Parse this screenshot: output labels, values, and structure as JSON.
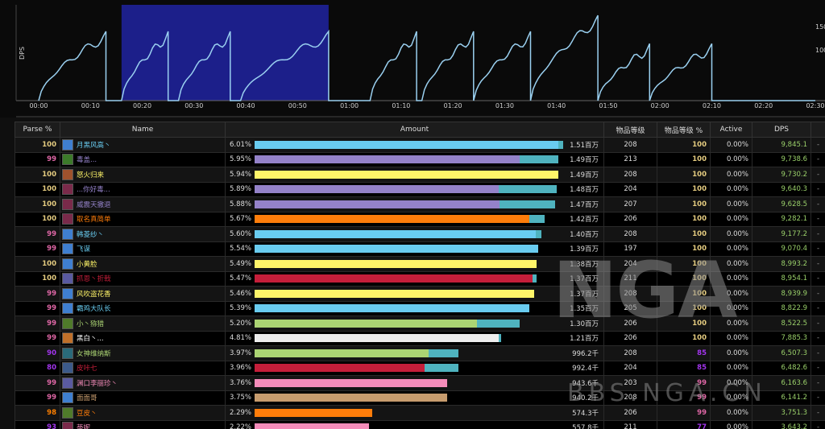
{
  "graph": {
    "y_label": "DPS",
    "y_ticks": [
      "150",
      "100"
    ],
    "x_ticks": [
      "00:00",
      "00:10",
      "00:20",
      "00:30",
      "00:40",
      "00:50",
      "01:00",
      "01:10",
      "01:20",
      "01:30",
      "01:40",
      "01:50",
      "02:00",
      "02:10",
      "02:20",
      "02:30"
    ],
    "duration_seconds": 150,
    "selection_seconds": [
      16,
      56
    ],
    "line_color": "#9ad0f0",
    "selection_color": "#1c1f8a"
  },
  "table": {
    "headers": {
      "parse": "Parse %",
      "name": "Name",
      "amount": "Amount",
      "ilvl": "物品等级",
      "ilvl_pct": "物品等级 %",
      "active": "Active",
      "dps": "DPS"
    },
    "rows": [
      {
        "parse": "100",
        "parse_color": "#e5cc80",
        "name": "月黑风高丶",
        "name_color": "#69ccf0",
        "icon": "mage-icon",
        "icon_color": "#3f7fd0",
        "amount_pct": "6.01%",
        "bar_fraction": 0.985,
        "bar_color": "#69ccf0",
        "bar_extra": 0.015,
        "total": "1.51百万",
        "ilvl": "208",
        "ilvl_pct": "100",
        "ilvl_pct_color": "#e5cc80",
        "active": "0.00%",
        "dps": "9,845.1"
      },
      {
        "parse": "99",
        "parse_color": "#e268a8",
        "name": "毒盖...",
        "name_color": "#9482c9",
        "icon": "warlock-icon",
        "icon_color": "#3c7a2a",
        "amount_pct": "5.95%",
        "bar_fraction": 0.86,
        "bar_color": "#9482c9",
        "bar_extra": 0.125,
        "total": "1.49百万",
        "ilvl": "213",
        "ilvl_pct": "100",
        "ilvl_pct_color": "#e5cc80",
        "active": "0.00%",
        "dps": "9,738.6"
      },
      {
        "parse": "100",
        "parse_color": "#e5cc80",
        "name": "怒火归来",
        "name_color": "#fff569",
        "icon": "rogue-icon",
        "icon_color": "#a0522d",
        "amount_pct": "5.94%",
        "bar_fraction": 0.985,
        "bar_color": "#fff569",
        "bar_extra": 0.0,
        "total": "1.49百万",
        "ilvl": "208",
        "ilvl_pct": "100",
        "ilvl_pct_color": "#e5cc80",
        "active": "0.00%",
        "dps": "9,730.2"
      },
      {
        "parse": "100",
        "parse_color": "#e5cc80",
        "name": "...你好毒...",
        "name_color": "#9482c9",
        "icon": "warlock-icon",
        "icon_color": "#7a2a4a",
        "amount_pct": "5.89%",
        "bar_fraction": 0.79,
        "bar_color": "#9482c9",
        "bar_extra": 0.19,
        "total": "1.48百万",
        "ilvl": "204",
        "ilvl_pct": "100",
        "ilvl_pct_color": "#e5cc80",
        "active": "0.00%",
        "dps": "9,640.3"
      },
      {
        "parse": "100",
        "parse_color": "#e5cc80",
        "name": "威震天撤退",
        "name_color": "#9482c9",
        "icon": "warlock-icon",
        "icon_color": "#7a2a4a",
        "amount_pct": "5.88%",
        "bar_fraction": 0.795,
        "bar_color": "#9482c9",
        "bar_extra": 0.18,
        "total": "1.47百万",
        "ilvl": "207",
        "ilvl_pct": "100",
        "ilvl_pct_color": "#e5cc80",
        "active": "0.00%",
        "dps": "9,628.5"
      },
      {
        "parse": "100",
        "parse_color": "#e5cc80",
        "name": "取名真简单",
        "name_color": "#ff7d0a",
        "icon": "druid-icon",
        "icon_color": "#7a2a4a",
        "amount_pct": "5.67%",
        "bar_fraction": 0.89,
        "bar_color": "#ff7d0a",
        "bar_extra": 0.05,
        "total": "1.42百万",
        "ilvl": "206",
        "ilvl_pct": "100",
        "ilvl_pct_color": "#e5cc80",
        "active": "0.00%",
        "dps": "9,282.1"
      },
      {
        "parse": "99",
        "parse_color": "#e268a8",
        "name": "韩菱纱丶",
        "name_color": "#69ccf0",
        "icon": "mage-icon",
        "icon_color": "#3f7fd0",
        "amount_pct": "5.60%",
        "bar_fraction": 0.91,
        "bar_color": "#69ccf0",
        "bar_extra": 0.02,
        "total": "1.40百万",
        "ilvl": "208",
        "ilvl_pct": "100",
        "ilvl_pct_color": "#e5cc80",
        "active": "0.00%",
        "dps": "9,177.2"
      },
      {
        "parse": "99",
        "parse_color": "#e268a8",
        "name": "飞谋",
        "name_color": "#69ccf0",
        "icon": "mage-icon",
        "icon_color": "#3f7fd0",
        "amount_pct": "5.54%",
        "bar_fraction": 0.92,
        "bar_color": "#69ccf0",
        "bar_extra": 0.0,
        "total": "1.39百万",
        "ilvl": "197",
        "ilvl_pct": "100",
        "ilvl_pct_color": "#e5cc80",
        "active": "0.00%",
        "dps": "9,070.4"
      },
      {
        "parse": "100",
        "parse_color": "#e5cc80",
        "name": "小黄脸",
        "name_color": "#fff569",
        "icon": "rogue-icon",
        "icon_color": "#3f7fd0",
        "amount_pct": "5.49%",
        "bar_fraction": 0.915,
        "bar_color": "#fff569",
        "bar_extra": 0.0,
        "total": "1.38百万",
        "ilvl": "204",
        "ilvl_pct": "100",
        "ilvl_pct_color": "#e5cc80",
        "active": "0.00%",
        "dps": "8,993.2"
      },
      {
        "parse": "100",
        "parse_color": "#e5cc80",
        "name": "抓恩丶折戟",
        "name_color": "#c41e3a",
        "icon": "dk-icon",
        "icon_color": "#5a5aa0",
        "amount_pct": "5.47%",
        "bar_fraction": 0.9,
        "bar_color": "#c41e3a",
        "bar_extra": 0.015,
        "total": "1.37百万",
        "ilvl": "211",
        "ilvl_pct": "100",
        "ilvl_pct_color": "#e5cc80",
        "active": "0.00%",
        "dps": "8,954.1"
      },
      {
        "parse": "99",
        "parse_color": "#e268a8",
        "name": "风吹盗花香",
        "name_color": "#fff569",
        "icon": "rogue-icon",
        "icon_color": "#3f7fd0",
        "amount_pct": "5.46%",
        "bar_fraction": 0.905,
        "bar_color": "#fff569",
        "bar_extra": 0.0,
        "total": "1.37百万",
        "ilvl": "208",
        "ilvl_pct": "100",
        "ilvl_pct_color": "#e5cc80",
        "active": "0.00%",
        "dps": "8,939.9"
      },
      {
        "parse": "99",
        "parse_color": "#e268a8",
        "name": "霸鸡大队长",
        "name_color": "#69ccf0",
        "icon": "mage-icon",
        "icon_color": "#3f7fd0",
        "amount_pct": "5.39%",
        "bar_fraction": 0.89,
        "bar_color": "#69ccf0",
        "bar_extra": 0.0,
        "total": "1.35百万",
        "ilvl": "205",
        "ilvl_pct": "100",
        "ilvl_pct_color": "#e5cc80",
        "active": "0.00%",
        "dps": "8,822.9"
      },
      {
        "parse": "99",
        "parse_color": "#e268a8",
        "name": "小丶猕猎",
        "name_color": "#abd473",
        "icon": "hunter-icon",
        "icon_color": "#4f7a2a",
        "amount_pct": "5.20%",
        "bar_fraction": 0.72,
        "bar_color": "#abd473",
        "bar_extra": 0.14,
        "total": "1.30百万",
        "ilvl": "206",
        "ilvl_pct": "100",
        "ilvl_pct_color": "#e5cc80",
        "active": "0.00%",
        "dps": "8,522.5"
      },
      {
        "parse": "99",
        "parse_color": "#e268a8",
        "name": "黑白丶...",
        "name_color": "#ffffff",
        "icon": "priest-icon",
        "icon_color": "#c0702a",
        "amount_pct": "4.81%",
        "bar_fraction": 0.79,
        "bar_color": "#eeeeee",
        "bar_extra": 0.01,
        "total": "1.21百万",
        "ilvl": "206",
        "ilvl_pct": "100",
        "ilvl_pct_color": "#e5cc80",
        "active": "0.00%",
        "dps": "7,885.3"
      },
      {
        "parse": "90",
        "parse_color": "#a335ee",
        "name": "女神维纳斯",
        "name_color": "#abd473",
        "icon": "hunter-icon",
        "icon_color": "#2a6a7a",
        "amount_pct": "3.97%",
        "bar_fraction": 0.565,
        "bar_color": "#abd473",
        "bar_extra": 0.095,
        "total": "996.2千",
        "ilvl": "208",
        "ilvl_pct": "85",
        "ilvl_pct_color": "#a335ee",
        "active": "0.00%",
        "dps": "6,507.3"
      },
      {
        "parse": "80",
        "parse_color": "#a335ee",
        "name": "皮咔七",
        "name_color": "#c41e3a",
        "icon": "dk-icon",
        "icon_color": "#3c5a8a",
        "amount_pct": "3.96%",
        "bar_fraction": 0.55,
        "bar_color": "#c41e3a",
        "bar_extra": 0.11,
        "total": "992.4千",
        "ilvl": "204",
        "ilvl_pct": "85",
        "ilvl_pct_color": "#a335ee",
        "active": "0.00%",
        "dps": "6,482.6"
      },
      {
        "parse": "99",
        "parse_color": "#e268a8",
        "name": "渊口李丽珍丶",
        "name_color": "#f58cba",
        "icon": "paladin-icon",
        "icon_color": "#5a5aa0",
        "amount_pct": "3.76%",
        "bar_fraction": 0.625,
        "bar_color": "#f58cba",
        "bar_extra": 0.0,
        "total": "943.6千",
        "ilvl": "203",
        "ilvl_pct": "99",
        "ilvl_pct_color": "#e268a8",
        "active": "0.00%",
        "dps": "6,163.6"
      },
      {
        "parse": "99",
        "parse_color": "#e268a8",
        "name": "面面哥",
        "name_color": "#c79c6e",
        "icon": "warrior-icon",
        "icon_color": "#3f7fd0",
        "amount_pct": "3.75%",
        "bar_fraction": 0.625,
        "bar_color": "#c79c6e",
        "bar_extra": 0.0,
        "total": "940.2千",
        "ilvl": "208",
        "ilvl_pct": "99",
        "ilvl_pct_color": "#e268a8",
        "active": "0.00%",
        "dps": "6,141.2"
      },
      {
        "parse": "98",
        "parse_color": "#ff8000",
        "name": "豆皮丶",
        "name_color": "#ff7d0a",
        "icon": "druid-icon",
        "icon_color": "#4f7a2a",
        "amount_pct": "2.29%",
        "bar_fraction": 0.38,
        "bar_color": "#ff7d0a",
        "bar_extra": 0.0,
        "total": "574.3千",
        "ilvl": "206",
        "ilvl_pct": "99",
        "ilvl_pct_color": "#e268a8",
        "active": "0.00%",
        "dps": "3,751.3"
      },
      {
        "parse": "93",
        "parse_color": "#a335ee",
        "name": "蒂妮",
        "name_color": "#f58cba",
        "icon": "paladin-icon",
        "icon_color": "#7a2a4a",
        "amount_pct": "2.22%",
        "bar_fraction": 0.37,
        "bar_color": "#f58cba",
        "bar_extra": 0.0,
        "total": "557.8千",
        "ilvl": "211",
        "ilvl_pct": "77",
        "ilvl_pct_color": "#a335ee",
        "active": "0.00%",
        "dps": "3,643.2"
      }
    ]
  },
  "watermark": {
    "logo": "NGA",
    "subtitle": "BBS.NGA.CN"
  }
}
